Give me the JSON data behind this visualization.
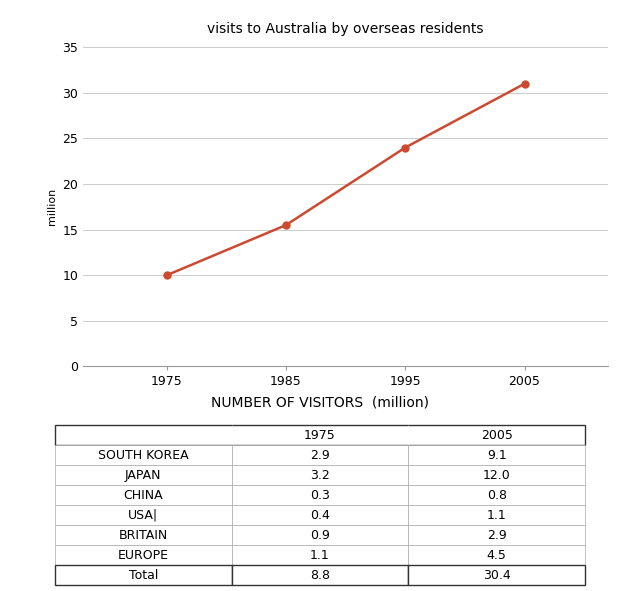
{
  "title": "visits to Australia by overseas residents",
  "x_values": [
    1975,
    1985,
    1995,
    2005
  ],
  "y_values": [
    10,
    15.5,
    24,
    31
  ],
  "y_label": "million",
  "ylim": [
    0,
    35
  ],
  "yticks": [
    0,
    5,
    10,
    15,
    20,
    25,
    30,
    35
  ],
  "xticks": [
    1975,
    1985,
    1995,
    2005
  ],
  "xlim": [
    1968,
    2012
  ],
  "line_color": "#CC4A30",
  "marker": "o",
  "marker_size": 5,
  "line_width": 1.8,
  "background_color": "#ffffff",
  "table_title": "NUMBER OF VISITORS  (million)",
  "table_columns": [
    "",
    "1975",
    "2005"
  ],
  "table_rows": [
    [
      "SOUTH KOREA",
      "2.9",
      "9.1"
    ],
    [
      "JAPAN",
      "3.2",
      "12.0"
    ],
    [
      "CHINA",
      "0.3",
      "0.8"
    ],
    [
      "USA|",
      "0.4",
      "1.1"
    ],
    [
      "BRITAIN",
      "0.9",
      "2.9"
    ],
    [
      "EUROPE",
      "1.1",
      "4.5"
    ],
    [
      "Total",
      "8.8",
      "30.4"
    ]
  ]
}
